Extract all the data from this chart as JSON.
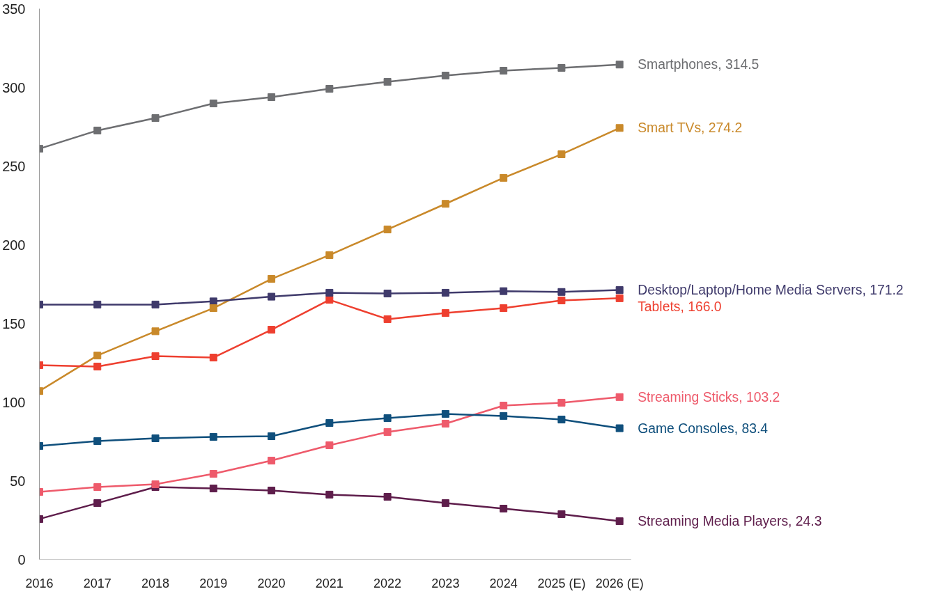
{
  "chart_data": {
    "type": "line",
    "categories": [
      "2016",
      "2017",
      "2018",
      "2019",
      "2020",
      "2021",
      "2022",
      "2023",
      "2024",
      "2025 (E)",
      "2026 (E)"
    ],
    "ylim": [
      0,
      350
    ],
    "yticks": [
      0,
      50,
      100,
      150,
      200,
      250,
      300,
      350
    ],
    "grid": false,
    "marker": "square",
    "line_style": "solid",
    "series": [
      {
        "color": "#6d6e71",
        "values": [
          261,
          272.6,
          280.5,
          289.8,
          293.8,
          299.1,
          303.5,
          307.5,
          310.6,
          312.4,
          314.5
        ]
      },
      {
        "color": "#c9892a",
        "values": [
          107,
          129.6,
          145,
          159.7,
          178.3,
          193.4,
          209.7,
          226,
          242.5,
          257.5,
          274.2
        ]
      },
      {
        "color": "#3f3a6b",
        "values": [
          162,
          162,
          162,
          164,
          167,
          169.5,
          169,
          169.5,
          170.5,
          170,
          171.2
        ]
      },
      {
        "color": "#ee3f2f",
        "values": [
          123.5,
          122.6,
          129.2,
          128.3,
          146,
          165,
          152.7,
          156.6,
          159.7,
          164.6,
          166.0
        ]
      },
      {
        "color": "#ee5a6b",
        "values": [
          42.9,
          46,
          47.8,
          54.4,
          62.8,
          72.6,
          81,
          86.3,
          97.8,
          99.6,
          103.2
        ]
      },
      {
        "color": "#0f4f7c",
        "values": [
          72.1,
          75.2,
          77,
          77.9,
          78.3,
          86.7,
          89.8,
          92.5,
          91.2,
          88.9,
          83.4
        ]
      },
      {
        "color": "#5e1d4b",
        "values": [
          25.7,
          35.8,
          46,
          45.1,
          43.8,
          41.2,
          39.8,
          35.8,
          32.3,
          28.8,
          24.3
        ]
      }
    ],
    "annotations": [
      {
        "text": "Smartphones, 314.5",
        "x": "2026 (E)",
        "y": 314.5
      },
      {
        "text": "Smart TVs, 274.2",
        "x": "2026 (E)",
        "y": 274.2
      },
      {
        "text": "Desktop/Laptop/Home Media Servers, 171.2",
        "x": "2026 (E)",
        "y": 171.2
      },
      {
        "text": "Tablets, 166.0",
        "x": "2026 (E)",
        "y": 166.0
      },
      {
        "text": "Streaming Sticks, 103.2",
        "x": "2026 (E)",
        "y": 103.2
      },
      {
        "text": "Game Consoles, 83.4",
        "x": "2026 (E)",
        "y": 83.4
      },
      {
        "text": "Streaming Media Players, 24.3",
        "x": "2026 (E)",
        "y": 24.3
      }
    ]
  }
}
